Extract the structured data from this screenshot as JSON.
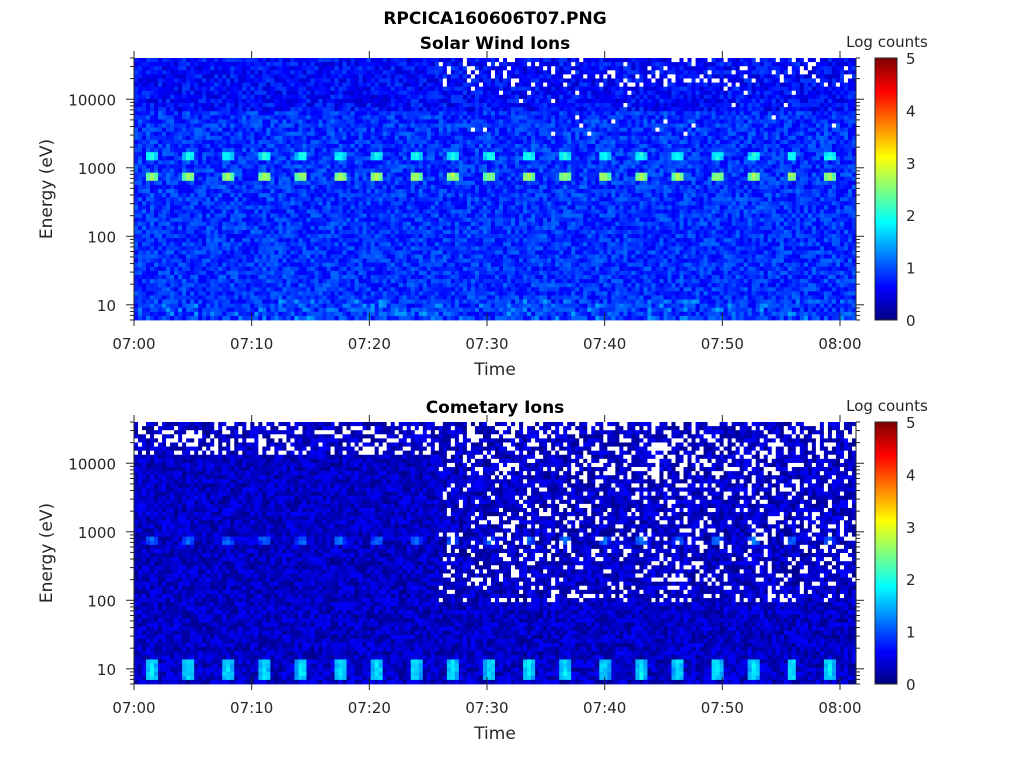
{
  "figure_title": "RPCICA160606T07.PNG",
  "colorbar_label": "Log counts",
  "chart_data": [
    {
      "type": "heatmap",
      "title": "Solar Wind Ions",
      "xlabel": "Time",
      "ylabel": "Energy (eV)",
      "xlim_minutes": [
        0,
        61.2
      ],
      "ylim": [
        6,
        40000
      ],
      "yscale": "log",
      "xticks": [
        "07:00",
        "07:10",
        "07:20",
        "07:30",
        "07:40",
        "07:50",
        "08:00"
      ],
      "yticks": [
        "10",
        "100",
        "1000",
        "10000"
      ],
      "colorbar": {
        "label": "Log counts",
        "range": [
          0,
          5
        ],
        "ticks": [
          "0",
          "1",
          "2",
          "3",
          "4",
          "5"
        ],
        "colormap": "jet"
      },
      "background_level": 0.85,
      "features": [
        {
          "energy_eV": 750,
          "level": 2.7,
          "period_min": 3.2,
          "start_min": 1.5
        },
        {
          "energy_eV": 1500,
          "level": 2.0,
          "period_min": 3.2,
          "start_min": 1.5
        }
      ],
      "missing_data_after_min": 26,
      "missing_data_above_eV": 3000
    },
    {
      "type": "heatmap",
      "title": "Cometary Ions",
      "xlabel": "Time",
      "ylabel": "Energy (eV)",
      "xlim_minutes": [
        0,
        61.2
      ],
      "ylim": [
        6,
        40000
      ],
      "yscale": "log",
      "xticks": [
        "07:00",
        "07:10",
        "07:20",
        "07:30",
        "07:40",
        "07:50",
        "08:00"
      ],
      "yticks": [
        "10",
        "100",
        "1000",
        "10000"
      ],
      "colorbar": {
        "label": "Log counts",
        "range": [
          0,
          5
        ],
        "ticks": [
          "0",
          "1",
          "2",
          "3",
          "4",
          "5"
        ],
        "colormap": "jet"
      },
      "background_level": 0.35,
      "features": [
        {
          "energy_eV": 750,
          "level": 1.2,
          "period_min": 3.2,
          "start_min": 1.5
        },
        {
          "energy_eV": 10,
          "level": 1.8,
          "period_min": 3.2,
          "start_min": 1.5
        }
      ],
      "missing_data_after_min": 26,
      "missing_data_above_eV": 100
    }
  ]
}
